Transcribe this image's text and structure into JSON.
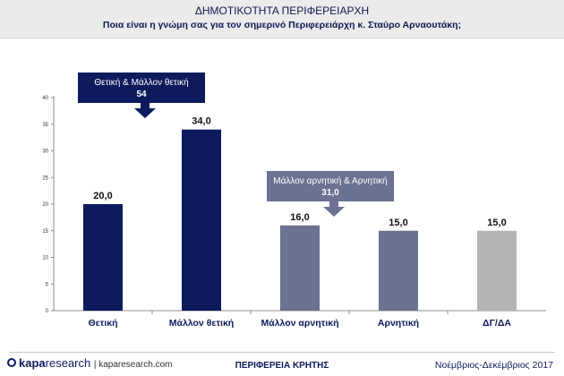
{
  "header": {
    "title": "ΔΗΜΟΤΙΚΟΤΗΤΑ ΠΕΡΙΦΕΡΕΙΑΡΧΗ",
    "subtitle": "Ποια είναι η γνώμη σας για τον σημερινό Περιφερειάρχη κ. Σταύρο Αρναουτάκη;"
  },
  "chart_data": {
    "type": "bar",
    "categories": [
      "Θετική",
      "Μάλλον θετική",
      "Μάλλον αρνητική",
      "Αρνητική",
      "ΔΓ/ΔΑ"
    ],
    "values": [
      20.0,
      34.0,
      16.0,
      15.0,
      15.0
    ],
    "value_labels": [
      "20,0",
      "34,0",
      "16,0",
      "15,0",
      "15,0"
    ],
    "colors": [
      "#0d1a5b",
      "#0d1a5b",
      "#6b7292",
      "#6b7292",
      "#b4b4b4"
    ],
    "ylim": [
      0,
      40
    ],
    "yticks": [
      0,
      5,
      10,
      15,
      20,
      25,
      30,
      35,
      40
    ],
    "grid": false,
    "xlabel": "",
    "ylabel": "",
    "annotations": [
      {
        "text": "Θετική & Μάλλον θετική",
        "value": "54",
        "color": "#0d1a5b",
        "points_to": "Μάλλον θετική"
      },
      {
        "text": "Μάλλον αρνητική & Αρνητική",
        "value": "31,0",
        "color": "#6b7292",
        "points_to": "Αρνητική"
      }
    ]
  },
  "footer": {
    "logo_bold": "kapa",
    "logo_light": "research",
    "url": "kaparesearch.com",
    "region": "ΠΕΡΙΦΕΡΕΙΑ ΚΡΗΤΗΣ",
    "period": "Νοέμβριος-Δεκέμβριος 2017"
  }
}
